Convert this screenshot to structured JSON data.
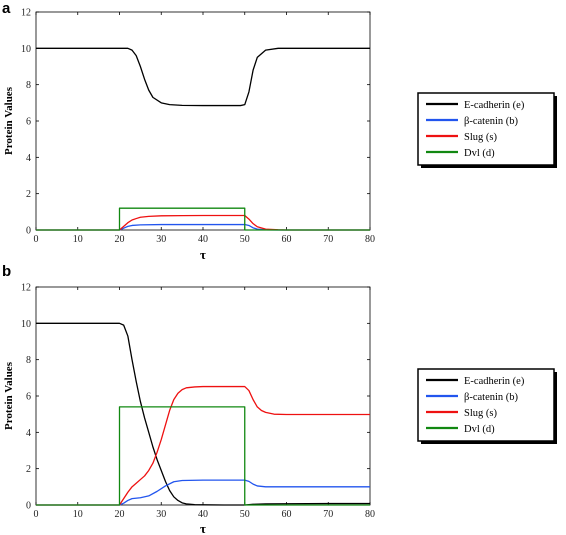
{
  "chart_data": [
    {
      "type": "line",
      "panel_label": "a",
      "xlabel": "τ",
      "ylabel": "Protein Values",
      "xlim": [
        0,
        80
      ],
      "ylim": [
        0,
        12
      ],
      "xticks": [
        0,
        10,
        20,
        30,
        40,
        50,
        60,
        70,
        80
      ],
      "yticks": [
        0,
        2,
        4,
        6,
        8,
        10,
        12
      ],
      "grid": false,
      "legend_position": "right",
      "series": [
        {
          "name": "E-cadherin (e)",
          "color": "#000000",
          "x": [
            0,
            20,
            22,
            23,
            24,
            25,
            26,
            27,
            28,
            30,
            32,
            35,
            40,
            45,
            49,
            50,
            51,
            52,
            53,
            55,
            58,
            60,
            70,
            80
          ],
          "y": [
            10,
            10,
            10,
            9.9,
            9.6,
            9.0,
            8.3,
            7.7,
            7.3,
            7.0,
            6.9,
            6.86,
            6.85,
            6.85,
            6.85,
            6.9,
            7.6,
            8.8,
            9.5,
            9.9,
            10,
            10,
            10,
            10
          ]
        },
        {
          "name": "β-catenin (b)",
          "color": "#2255ee",
          "x": [
            0,
            20,
            21,
            22,
            23,
            25,
            30,
            40,
            50,
            51,
            52,
            53,
            55,
            58,
            60,
            70,
            80
          ],
          "y": [
            0,
            0,
            0.1,
            0.2,
            0.25,
            0.28,
            0.3,
            0.3,
            0.3,
            0.25,
            0.12,
            0.05,
            0.01,
            0,
            0,
            0,
            0
          ]
        },
        {
          "name": "Slug (s)",
          "color": "#ee1111",
          "x": [
            0,
            20,
            21,
            22,
            23,
            24,
            25,
            27,
            30,
            35,
            40,
            45,
            50,
            51,
            52,
            53,
            55,
            58,
            60,
            70,
            80
          ],
          "y": [
            0,
            0,
            0.2,
            0.4,
            0.55,
            0.63,
            0.7,
            0.75,
            0.78,
            0.79,
            0.8,
            0.8,
            0.8,
            0.6,
            0.35,
            0.18,
            0.05,
            0.01,
            0,
            0,
            0
          ]
        },
        {
          "name": "Dvl (d)",
          "color": "#118811",
          "x": [
            0,
            20,
            20,
            50,
            50,
            80
          ],
          "y": [
            0,
            0,
            1.2,
            1.2,
            0,
            0
          ]
        }
      ]
    },
    {
      "type": "line",
      "panel_label": "b",
      "xlabel": "τ",
      "ylabel": "Protein Values",
      "xlim": [
        0,
        80
      ],
      "ylim": [
        0,
        12
      ],
      "xticks": [
        0,
        10,
        20,
        30,
        40,
        50,
        60,
        70,
        80
      ],
      "yticks": [
        0,
        2,
        4,
        6,
        8,
        10,
        12
      ],
      "grid": false,
      "legend_position": "right",
      "series": [
        {
          "name": "E-cadherin (e)",
          "color": "#000000",
          "x": [
            0,
            20,
            21,
            22,
            23,
            24,
            25,
            26,
            27,
            28,
            29,
            30,
            31,
            32,
            33,
            34,
            35,
            36,
            38,
            40,
            45,
            50,
            52,
            55,
            60,
            70,
            80
          ],
          "y": [
            10,
            10,
            9.9,
            9.3,
            8.0,
            6.8,
            5.7,
            4.8,
            4.0,
            3.2,
            2.5,
            1.9,
            1.3,
            0.8,
            0.45,
            0.25,
            0.12,
            0.06,
            0.02,
            0.01,
            0,
            0,
            0.04,
            0.06,
            0.07,
            0.08,
            0.08
          ]
        },
        {
          "name": "β-catenin (b)",
          "color": "#2255ee",
          "x": [
            0,
            20,
            21,
            22,
            23,
            25,
            27,
            29,
            31,
            33,
            35,
            40,
            45,
            50,
            51,
            52,
            53,
            55,
            60,
            70,
            80
          ],
          "y": [
            0,
            0,
            0.1,
            0.25,
            0.35,
            0.4,
            0.5,
            0.75,
            1.05,
            1.28,
            1.35,
            1.37,
            1.37,
            1.37,
            1.3,
            1.15,
            1.05,
            1.0,
            1.0,
            1.0,
            1.0
          ]
        },
        {
          "name": "Slug (s)",
          "color": "#ee1111",
          "x": [
            0,
            20,
            21,
            22,
            23,
            24,
            25,
            26,
            27,
            28,
            29,
            30,
            31,
            32,
            33,
            34,
            35,
            36,
            38,
            40,
            45,
            50,
            51,
            52,
            53,
            54,
            55,
            57,
            60,
            70,
            80
          ],
          "y": [
            0,
            0,
            0.35,
            0.7,
            1.0,
            1.2,
            1.4,
            1.6,
            1.9,
            2.3,
            2.9,
            3.6,
            4.4,
            5.2,
            5.8,
            6.15,
            6.35,
            6.45,
            6.5,
            6.52,
            6.52,
            6.52,
            6.3,
            5.8,
            5.4,
            5.2,
            5.1,
            5.0,
            4.98,
            4.98,
            4.98
          ]
        },
        {
          "name": "Dvl (d)",
          "color": "#118811",
          "x": [
            0,
            20,
            20,
            50,
            50,
            80
          ],
          "y": [
            0,
            0,
            5.4,
            5.4,
            0,
            0
          ]
        }
      ]
    }
  ]
}
